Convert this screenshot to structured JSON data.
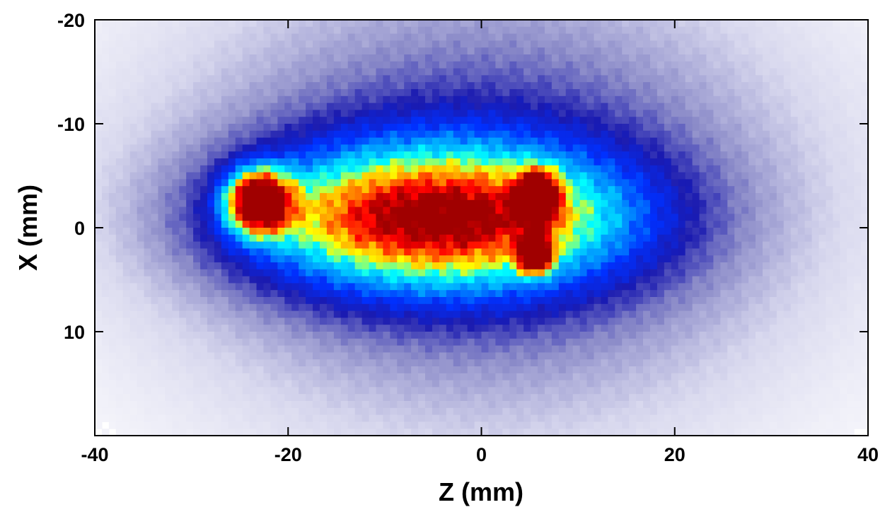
{
  "chart_data": {
    "type": "heatmap",
    "title": "",
    "xlabel": "Z (mm)",
    "ylabel": "X (mm)",
    "xlim": [
      -40,
      40
    ],
    "ylim": [
      -20,
      20
    ],
    "y_inverted": true,
    "x_ticks": [
      "-40",
      "-20",
      "0",
      "20",
      "40"
    ],
    "x_tick_values": [
      -40,
      -20,
      0,
      20,
      40
    ],
    "y_ticks": [
      "-20",
      "-10",
      "0",
      "10"
    ],
    "y_tick_values": [
      -20,
      -10,
      0,
      10
    ],
    "colormap": [
      "#ffffff",
      "#d8d8ee",
      "#8a8ac8",
      "#1a1ab0",
      "#0030ff",
      "#00a0ff",
      "#00ffff",
      "#ffff00",
      "#ff8000",
      "#ff0000",
      "#a00000"
    ],
    "grid": false,
    "legend": "none",
    "features": [
      {
        "name": "diffuse halo",
        "z": 0,
        "x": -3,
        "sigma_z": 24,
        "sigma_x": 16,
        "peak": 0.3
      },
      {
        "name": "dense core",
        "z": -5,
        "x": -1,
        "sigma_z": 14,
        "sigma_x": 5,
        "peak": 0.62
      },
      {
        "name": "central bright band",
        "z": -4,
        "x": -1,
        "sigma_z": 9,
        "sigma_x": 2.6,
        "peak": 0.18
      },
      {
        "name": "left hotspot",
        "z": -23,
        "x": -2.5,
        "sigma_z": 2.2,
        "sigma_x": 2,
        "peak": 0.9
      },
      {
        "name": "upper right hotspot",
        "z": 5.8,
        "x": -3,
        "sigma_z": 1.3,
        "sigma_x": 1.5,
        "peak": 1.0
      },
      {
        "name": "lower right hotspot",
        "z": 5.6,
        "x": 2.6,
        "sigma_z": 1.1,
        "sigma_x": 1.1,
        "peak": 0.95
      }
    ]
  }
}
